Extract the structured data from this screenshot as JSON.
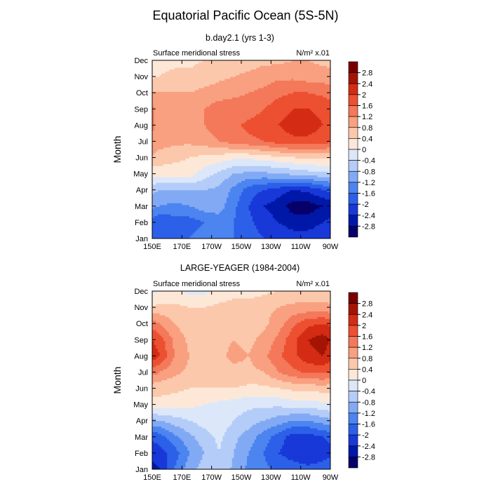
{
  "title": "Equatorial Pacific Ocean (5S-5N)",
  "colors": {
    "levels": [
      "#08006a",
      "#0018a8",
      "#1838d8",
      "#2c60e8",
      "#4c84f0",
      "#82aaf4",
      "#b4ccf8",
      "#dce8fa",
      "#fde8d8",
      "#fcc8ac",
      "#f8a080",
      "#f4785a",
      "#ec5030",
      "#d42c14",
      "#a41404",
      "#7a0000"
    ]
  },
  "chart_data": [
    {
      "type": "heatmap",
      "title": "b.day2.1 (yrs 1-3)",
      "left_label": "Surface meridional stress",
      "right_label": "N/m² x.01",
      "ylabel": "Month",
      "xlabel": "",
      "x_labels": [
        "150E",
        "170E",
        "170W",
        "150W",
        "130W",
        "110W",
        "90W"
      ],
      "x_lon": [
        150,
        170,
        190,
        210,
        230,
        250,
        270
      ],
      "y_labels": [
        "Jan",
        "Feb",
        "Mar",
        "Apr",
        "May",
        "Jun",
        "Jul",
        "Aug",
        "Sep",
        "Oct",
        "Nov",
        "Dec"
      ],
      "colorbar": [
        "2.8",
        "2.4",
        "2",
        "1.6",
        "1.2",
        "0.8",
        "0.4",
        "0",
        "-0.4",
        "-0.8",
        "-1.2",
        "-1.6",
        "-2",
        "-2.4",
        "-2.8"
      ],
      "levels": [
        -2.8,
        -2.4,
        -2.0,
        -1.6,
        -1.2,
        -0.8,
        -0.4,
        0,
        0.4,
        0.8,
        1.2,
        1.6,
        2.0,
        2.4,
        2.8
      ],
      "grid_lon": [
        145,
        155,
        165,
        175,
        185,
        195,
        205,
        215,
        225,
        235,
        245,
        255,
        265,
        275
      ],
      "values": [
        [
          -1.4,
          -1.8,
          -1.6,
          -1.6,
          -1.4,
          -1.5,
          -1.6,
          -1.8,
          -2.0,
          -2.1,
          -2.2,
          -2.2,
          -2.1,
          -2.0
        ],
        [
          -1.6,
          -2.0,
          -1.8,
          -1.8,
          -1.6,
          -1.4,
          -1.6,
          -1.9,
          -2.2,
          -2.4,
          -2.6,
          -2.6,
          -2.4,
          -2.2
        ],
        [
          -1.0,
          -1.2,
          -1.3,
          -1.2,
          -1.0,
          -1.0,
          -1.5,
          -2.0,
          -2.4,
          -2.6,
          -3.0,
          -3.0,
          -2.8,
          -2.5
        ],
        [
          -0.6,
          -0.8,
          -0.8,
          -0.8,
          -0.8,
          -0.9,
          -1.3,
          -1.8,
          -2.0,
          -2.2,
          -2.4,
          -2.3,
          -2.0,
          -1.8
        ],
        [
          0.1,
          0.2,
          0.2,
          0.2,
          -0.2,
          -0.5,
          -0.8,
          -0.9,
          -0.9,
          -0.8,
          -0.7,
          -0.6,
          -0.5,
          -0.4
        ],
        [
          0.9,
          0.6,
          0.5,
          0.4,
          0.3,
          0.2,
          0.1,
          0.1,
          0.2,
          0.3,
          0.4,
          0.5,
          0.5,
          0.5
        ],
        [
          1.3,
          1.0,
          0.9,
          0.9,
          1.0,
          1.2,
          1.4,
          1.5,
          1.6,
          1.8,
          1.9,
          1.9,
          1.8,
          1.6
        ],
        [
          1.4,
          1.1,
          1.0,
          1.1,
          1.2,
          1.4,
          1.5,
          1.7,
          1.8,
          2.0,
          2.2,
          2.2,
          2.0,
          1.8
        ],
        [
          1.4,
          1.1,
          1.0,
          1.1,
          1.2,
          1.4,
          1.4,
          1.4,
          1.6,
          1.8,
          2.0,
          2.0,
          1.9,
          1.7
        ],
        [
          0.9,
          0.8,
          0.8,
          0.8,
          0.9,
          1.0,
          1.1,
          1.2,
          1.3,
          1.5,
          1.6,
          1.6,
          1.5,
          1.4
        ],
        [
          0.3,
          0.4,
          0.5,
          0.5,
          0.6,
          0.7,
          0.8,
          0.9,
          1.0,
          1.1,
          1.1,
          1.0,
          1.0,
          0.9
        ],
        [
          0.2,
          0.3,
          0.3,
          0.3,
          0.4,
          0.4,
          0.5,
          0.6,
          0.7,
          0.7,
          0.8,
          0.8,
          0.7,
          0.6
        ]
      ]
    },
    {
      "type": "heatmap",
      "title": "LARGE-YEAGER (1984-2004)",
      "left_label": "Surface meridional stress",
      "right_label": "N/m² x.01",
      "ylabel": "Month",
      "xlabel": "",
      "x_labels": [
        "150E",
        "170E",
        "170W",
        "150W",
        "130W",
        "110W",
        "90W"
      ],
      "x_lon": [
        150,
        170,
        190,
        210,
        230,
        250,
        270
      ],
      "y_labels": [
        "Jan",
        "Feb",
        "Mar",
        "Apr",
        "May",
        "Jun",
        "Jul",
        "Aug",
        "Sep",
        "Oct",
        "Nov",
        "Dec"
      ],
      "colorbar": [
        "2.8",
        "2.4",
        "2",
        "1.6",
        "1.2",
        "0.8",
        "0.4",
        "0",
        "-0.4",
        "-0.8",
        "-1.2",
        "-1.6",
        "-2",
        "-2.4",
        "-2.8"
      ],
      "levels": [
        -2.8,
        -2.4,
        -2.0,
        -1.6,
        -1.2,
        -0.8,
        -0.4,
        0,
        0.4,
        0.8,
        1.2,
        1.6,
        2.0,
        2.4,
        2.8
      ],
      "grid_lon": [
        145,
        155,
        165,
        175,
        185,
        195,
        205,
        215,
        225,
        235,
        245,
        255,
        265,
        275
      ],
      "values": [
        [
          -2.6,
          -2.4,
          -1.6,
          -1.0,
          -0.6,
          -0.4,
          -0.9,
          -1.3,
          -1.5,
          -1.7,
          -1.8,
          -1.9,
          -1.8,
          -1.6
        ],
        [
          -2.4,
          -2.2,
          -1.8,
          -1.2,
          -0.8,
          -0.4,
          -0.8,
          -1.2,
          -1.6,
          -2.0,
          -2.2,
          -2.3,
          -2.2,
          -2.0
        ],
        [
          -2.0,
          -1.8,
          -1.3,
          -0.9,
          -0.6,
          -0.3,
          -0.7,
          -1.0,
          -1.4,
          -1.8,
          -2.2,
          -2.2,
          -2.0,
          -1.8
        ],
        [
          -1.0,
          -0.8,
          -0.6,
          -0.4,
          -0.2,
          -0.1,
          -0.4,
          -0.6,
          -0.8,
          -1.0,
          -1.2,
          -1.2,
          -1.0,
          -0.8
        ],
        [
          0.2,
          0.3,
          0.2,
          0.1,
          0.0,
          -0.1,
          -0.2,
          -0.3,
          -0.3,
          -0.3,
          -0.2,
          -0.2,
          -0.1,
          0.0
        ],
        [
          0.6,
          0.5,
          0.5,
          0.4,
          0.4,
          0.4,
          0.4,
          0.3,
          0.3,
          0.4,
          0.5,
          0.5,
          0.6,
          0.5
        ],
        [
          1.6,
          1.2,
          0.9,
          0.7,
          0.6,
          0.6,
          0.7,
          0.7,
          0.8,
          1.2,
          1.5,
          1.7,
          1.7,
          1.5
        ],
        [
          2.6,
          2.0,
          1.2,
          0.8,
          0.7,
          0.7,
          0.9,
          0.8,
          1.1,
          1.5,
          1.9,
          2.3,
          2.4,
          2.0
        ],
        [
          2.2,
          1.8,
          1.1,
          0.7,
          0.6,
          0.7,
          0.8,
          0.7,
          0.9,
          1.3,
          1.9,
          2.4,
          2.6,
          2.2
        ],
        [
          1.6,
          1.2,
          0.8,
          0.5,
          0.5,
          0.6,
          0.7,
          0.6,
          0.7,
          1.0,
          1.5,
          1.9,
          2.0,
          1.8
        ],
        [
          0.4,
          0.5,
          0.5,
          0.4,
          0.4,
          0.5,
          0.6,
          0.6,
          0.7,
          0.8,
          0.9,
          0.9,
          0.9,
          0.8
        ],
        [
          -0.2,
          0.0,
          0.1,
          -0.1,
          -0.1,
          0.1,
          0.2,
          0.2,
          0.3,
          0.4,
          0.5,
          0.6,
          0.6,
          0.6
        ]
      ]
    }
  ]
}
